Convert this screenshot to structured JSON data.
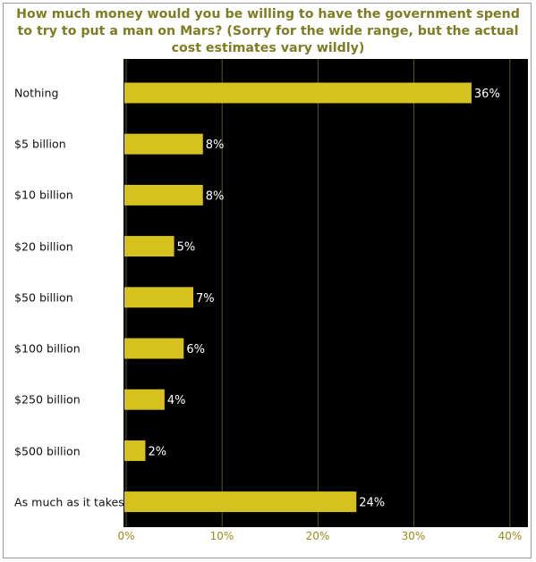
{
  "chart_data": {
    "type": "bar",
    "orientation": "horizontal",
    "title": "How much money would you be willing to have the government spend to try to put a man on Mars? (Sorry for the wide range, but the actual cost estimates vary wildly)",
    "categories": [
      "Nothing",
      "$5 billion",
      "$10 billion",
      "$20 billion",
      "$50 billion",
      "$100 billion",
      "$250 billion",
      "$500 billion",
      "As much as it takes"
    ],
    "values": [
      36,
      8,
      8,
      5,
      7,
      6,
      4,
      2,
      24
    ],
    "value_labels": [
      "36%",
      "8%",
      "8%",
      "5%",
      "7%",
      "6%",
      "4%",
      "2%",
      "24%"
    ],
    "xlim": [
      0,
      42
    ],
    "xticks": [
      "0%",
      "10%",
      "20%",
      "30%",
      "40%"
    ],
    "grid": "vertical",
    "colors": {
      "bar": "#d6c21e",
      "plot_background": "#000000",
      "gridline": "#5a5628",
      "title": "#7d7d23",
      "value_label": "#ffffff",
      "tick_label": "#9a8a1c"
    }
  }
}
